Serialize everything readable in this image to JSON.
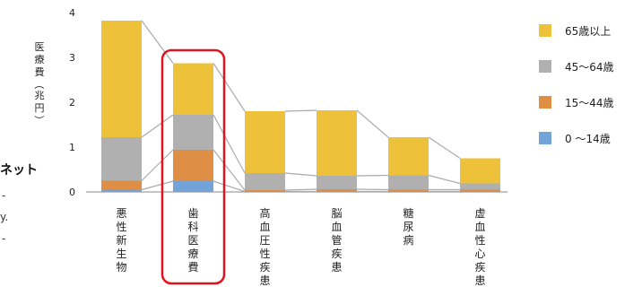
{
  "side_fragments": {
    "net_text": "ネット",
    "marks": [
      "-",
      "y.",
      "-"
    ]
  },
  "colors": {
    "age_65_plus": "#EDC23A",
    "age_45_64": "#B0B0B0",
    "age_15_44": "#DF8E45",
    "age_0_14": "#72A3D9",
    "connector": "#AAAAAA",
    "highlight": "#E0141E"
  },
  "chart_data": {
    "type": "bar",
    "stacked": true,
    "title": "",
    "ylabel": "医療費（兆円）",
    "ylim": [
      0,
      4
    ],
    "yticks": [
      "0",
      "1",
      "2",
      "3",
      "4"
    ],
    "grid": false,
    "legend_position": "right",
    "highlighted_category": "歯科医療費",
    "categories": [
      "悪性新生物",
      "歯科医療費",
      "高血圧性疾患",
      "脳血管疾患",
      "糖尿病",
      "虚血性心疾患"
    ],
    "series": [
      {
        "name": "0 〜14歳",
        "color_key": "age_0_14",
        "values": [
          0.05,
          0.24,
          0.01,
          0.01,
          0.01,
          0.01
        ]
      },
      {
        "name": "15〜44歳",
        "color_key": "age_15_44",
        "values": [
          0.2,
          0.7,
          0.03,
          0.05,
          0.04,
          0.04
        ]
      },
      {
        "name": "45〜64歳",
        "color_key": "age_45_64",
        "values": [
          0.97,
          0.78,
          0.38,
          0.3,
          0.32,
          0.14
        ]
      },
      {
        "name": "65歳以上",
        "color_key": "age_65_plus",
        "values": [
          2.6,
          1.15,
          1.38,
          1.46,
          0.85,
          0.56
        ]
      }
    ]
  }
}
